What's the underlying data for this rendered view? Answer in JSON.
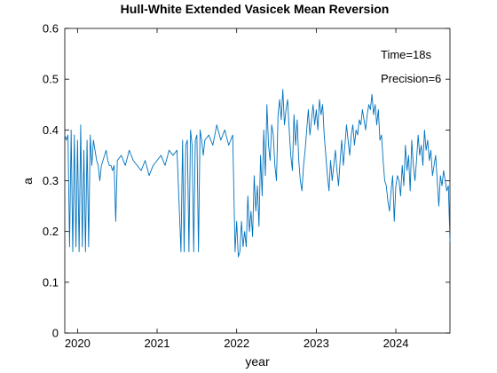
{
  "chart_data": {
    "type": "line",
    "title": "Hull-White Extended Vasicek Mean Reversion",
    "xlabel": "year",
    "ylabel": "a",
    "xlim": [
      2019.84,
      2024.68
    ],
    "ylim": [
      0,
      0.6
    ],
    "grid": false,
    "x_ticks": [
      {
        "value": 2020,
        "label": "2020"
      },
      {
        "value": 2021,
        "label": "2021"
      },
      {
        "value": 2022,
        "label": "2022"
      },
      {
        "value": 2023,
        "label": "2023"
      },
      {
        "value": 2024,
        "label": "2024"
      }
    ],
    "y_ticks": [
      {
        "value": 0,
        "label": "0"
      },
      {
        "value": 0.1,
        "label": "0.1"
      },
      {
        "value": 0.2,
        "label": "0.2"
      },
      {
        "value": 0.3,
        "label": "0.3"
      },
      {
        "value": 0.4,
        "label": "0.4"
      },
      {
        "value": 0.5,
        "label": "0.5"
      },
      {
        "value": 0.6,
        "label": "0.6"
      }
    ],
    "annotations": [
      "Time=18s",
      "Precision=6"
    ],
    "line_color": "#0072bd",
    "series": [
      {
        "x": [
          2019.84,
          2019.86,
          2019.88,
          2019.9,
          2019.92,
          2019.94,
          2019.96,
          2019.98,
          2020.0,
          2020.02,
          2020.04,
          2020.06,
          2020.08,
          2020.1,
          2020.12,
          2020.14,
          2020.16,
          2020.18,
          2020.2,
          2020.22,
          2020.24,
          2020.26,
          2020.28,
          2020.3,
          2020.32,
          2020.34,
          2020.36,
          2020.38,
          2020.4,
          2020.42,
          2020.44,
          2020.46,
          2020.48,
          2020.5,
          2020.55,
          2020.6,
          2020.65,
          2020.7,
          2020.75,
          2020.8,
          2020.85,
          2020.9,
          2020.95,
          2021.0,
          2021.05,
          2021.1,
          2021.15,
          2021.2,
          2021.25,
          2021.3,
          2021.32,
          2021.34,
          2021.36,
          2021.38,
          2021.4,
          2021.42,
          2021.44,
          2021.46,
          2021.48,
          2021.5,
          2021.52,
          2021.54,
          2021.56,
          2021.58,
          2021.6,
          2021.65,
          2021.7,
          2021.75,
          2021.8,
          2021.85,
          2021.9,
          2021.95,
          2021.98,
          2022.0,
          2022.02,
          2022.04,
          2022.06,
          2022.08,
          2022.1,
          2022.12,
          2022.14,
          2022.16,
          2022.18,
          2022.2,
          2022.22,
          2022.24,
          2022.26,
          2022.28,
          2022.3,
          2022.32,
          2022.34,
          2022.36,
          2022.38,
          2022.4,
          2022.42,
          2022.44,
          2022.46,
          2022.48,
          2022.5,
          2022.52,
          2022.54,
          2022.56,
          2022.58,
          2022.6,
          2022.62,
          2022.64,
          2022.66,
          2022.68,
          2022.7,
          2022.72,
          2022.74,
          2022.76,
          2022.78,
          2022.8,
          2022.82,
          2022.84,
          2022.86,
          2022.88,
          2022.9,
          2022.92,
          2022.94,
          2022.96,
          2022.98,
          2023.0,
          2023.02,
          2023.04,
          2023.06,
          2023.08,
          2023.1,
          2023.12,
          2023.14,
          2023.16,
          2023.18,
          2023.2,
          2023.22,
          2023.24,
          2023.26,
          2023.28,
          2023.3,
          2023.32,
          2023.34,
          2023.36,
          2023.38,
          2023.4,
          2023.42,
          2023.44,
          2023.46,
          2023.48,
          2023.5,
          2023.52,
          2023.54,
          2023.56,
          2023.58,
          2023.6,
          2023.62,
          2023.64,
          2023.66,
          2023.68,
          2023.7,
          2023.72,
          2023.74,
          2023.76,
          2023.78,
          2023.8,
          2023.82,
          2023.84,
          2023.86,
          2023.88,
          2023.9,
          2023.92,
          2023.94,
          2023.96,
          2023.98,
          2024.0,
          2024.02,
          2024.04,
          2024.06,
          2024.08,
          2024.1,
          2024.12,
          2024.14,
          2024.16,
          2024.18,
          2024.2,
          2024.22,
          2024.24,
          2024.26,
          2024.28,
          2024.3,
          2024.32,
          2024.34,
          2024.36,
          2024.38,
          2024.4,
          2024.42,
          2024.44,
          2024.46,
          2024.48,
          2024.5,
          2024.52,
          2024.54,
          2024.56,
          2024.58,
          2024.6,
          2024.62,
          2024.64,
          2024.66,
          2024.68
        ],
        "y": [
          0.39,
          0.38,
          0.39,
          0.17,
          0.4,
          0.16,
          0.39,
          0.17,
          0.38,
          0.16,
          0.41,
          0.17,
          0.36,
          0.16,
          0.38,
          0.17,
          0.39,
          0.33,
          0.38,
          0.36,
          0.34,
          0.33,
          0.3,
          0.33,
          0.34,
          0.35,
          0.36,
          0.34,
          0.33,
          0.33,
          0.32,
          0.33,
          0.22,
          0.34,
          0.35,
          0.33,
          0.36,
          0.34,
          0.33,
          0.32,
          0.34,
          0.31,
          0.33,
          0.34,
          0.35,
          0.33,
          0.36,
          0.35,
          0.36,
          0.16,
          0.38,
          0.16,
          0.37,
          0.38,
          0.16,
          0.4,
          0.37,
          0.16,
          0.38,
          0.39,
          0.16,
          0.4,
          0.38,
          0.35,
          0.38,
          0.39,
          0.37,
          0.41,
          0.38,
          0.4,
          0.37,
          0.39,
          0.16,
          0.22,
          0.15,
          0.16,
          0.22,
          0.17,
          0.2,
          0.17,
          0.27,
          0.2,
          0.24,
          0.19,
          0.31,
          0.24,
          0.29,
          0.21,
          0.35,
          0.27,
          0.4,
          0.31,
          0.45,
          0.37,
          0.34,
          0.41,
          0.39,
          0.33,
          0.3,
          0.43,
          0.46,
          0.42,
          0.48,
          0.41,
          0.44,
          0.46,
          0.4,
          0.35,
          0.32,
          0.43,
          0.37,
          0.42,
          0.34,
          0.3,
          0.28,
          0.33,
          0.36,
          0.4,
          0.44,
          0.39,
          0.42,
          0.45,
          0.41,
          0.44,
          0.4,
          0.46,
          0.43,
          0.45,
          0.39,
          0.35,
          0.31,
          0.28,
          0.34,
          0.3,
          0.33,
          0.36,
          0.32,
          0.29,
          0.34,
          0.38,
          0.33,
          0.37,
          0.41,
          0.38,
          0.35,
          0.39,
          0.41,
          0.37,
          0.4,
          0.39,
          0.42,
          0.41,
          0.44,
          0.42,
          0.4,
          0.43,
          0.45,
          0.44,
          0.47,
          0.43,
          0.45,
          0.41,
          0.44,
          0.38,
          0.39,
          0.34,
          0.3,
          0.29,
          0.26,
          0.24,
          0.28,
          0.31,
          0.22,
          0.29,
          0.31,
          0.3,
          0.27,
          0.33,
          0.29,
          0.37,
          0.32,
          0.35,
          0.28,
          0.38,
          0.33,
          0.3,
          0.34,
          0.39,
          0.35,
          0.37,
          0.33,
          0.4,
          0.36,
          0.38,
          0.34,
          0.36,
          0.31,
          0.33,
          0.35,
          0.3,
          0.25,
          0.31,
          0.29,
          0.32,
          0.3,
          0.28,
          0.29,
          0.18
        ]
      }
    ]
  }
}
